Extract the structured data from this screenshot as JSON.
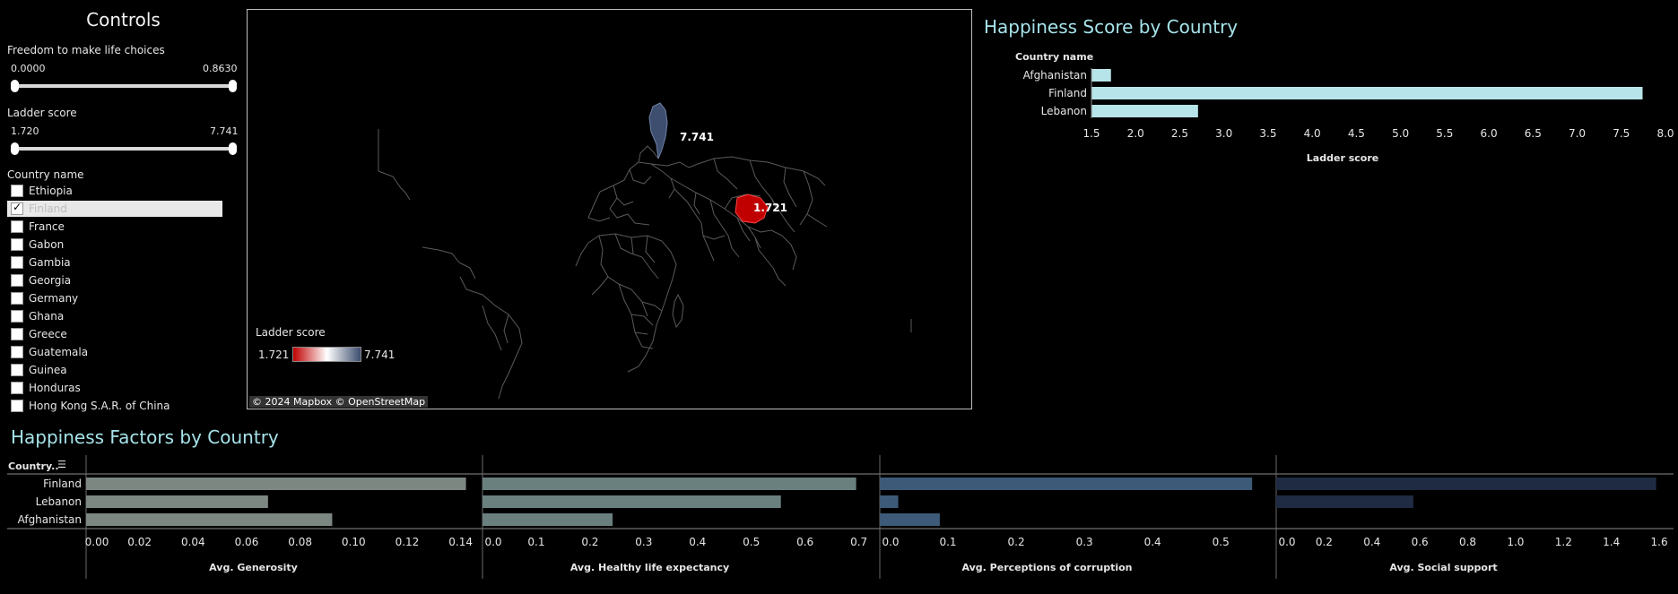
{
  "controls": {
    "title": "Controls",
    "freedom": {
      "label": "Freedom to make life choices",
      "min": "0.0000",
      "max": "0.8630"
    },
    "ladder": {
      "label": "Ladder score",
      "min": "1.720",
      "max": "7.741"
    },
    "country_filter": {
      "label": "Country name",
      "items": [
        {
          "name": "Ethiopia",
          "checked": false
        },
        {
          "name": "Finland",
          "checked": true
        },
        {
          "name": "France",
          "checked": false
        },
        {
          "name": "Gabon",
          "checked": false
        },
        {
          "name": "Gambia",
          "checked": false
        },
        {
          "name": "Georgia",
          "checked": false
        },
        {
          "name": "Germany",
          "checked": false
        },
        {
          "name": "Ghana",
          "checked": false
        },
        {
          "name": "Greece",
          "checked": false
        },
        {
          "name": "Guatemala",
          "checked": false
        },
        {
          "name": "Guinea",
          "checked": false
        },
        {
          "name": "Honduras",
          "checked": false
        },
        {
          "name": "Hong Kong S.A.R. of China",
          "checked": false
        }
      ]
    }
  },
  "map": {
    "legend_title": "Ladder score",
    "legend_min": "1.721",
    "legend_max": "7.741",
    "attribution": "© 2024 Mapbox © OpenStreetMap",
    "labels": [
      {
        "id": "finland",
        "text": "7.741"
      },
      {
        "id": "afghanistan",
        "text": "1.721"
      }
    ],
    "colors": {
      "high": "#3d4e6e",
      "low": "#c00000",
      "borders": "#5a5a5a"
    }
  },
  "score_chart": {
    "title": "Happiness Score by Country",
    "category_header": "Country name",
    "axis_title": "Ladder score",
    "bar_color": "#b7e4e9"
  },
  "factors_chart": {
    "title": "Happiness Factors by Country",
    "category_header": "Country..",
    "panels": [
      {
        "axis_title": "Avg. Generosity",
        "color": "#7d8781",
        "ticks": [
          "0.00",
          "0.02",
          "0.04",
          "0.06",
          "0.08",
          "0.10",
          "0.12",
          "0.14"
        ]
      },
      {
        "axis_title": "Avg. Healthy life expectancy",
        "color": "#6a807f",
        "ticks": [
          "0.0",
          "0.1",
          "0.2",
          "0.3",
          "0.4",
          "0.5",
          "0.6",
          "0.7"
        ]
      },
      {
        "axis_title": "Avg. Perceptions of corruption",
        "color": "#3d5a78",
        "ticks": [
          "0.0",
          "0.1",
          "0.2",
          "0.3",
          "0.4",
          "0.5"
        ]
      },
      {
        "axis_title": "Avg. Social support",
        "color": "#1f2b42",
        "ticks": [
          "0.0",
          "0.2",
          "0.4",
          "0.6",
          "0.8",
          "1.0",
          "1.2",
          "1.4",
          "1.6"
        ]
      }
    ]
  },
  "chart_data": [
    {
      "type": "bar",
      "orientation": "horizontal",
      "title": "Happiness Score by Country",
      "xlabel": "Ladder score",
      "ylabel": "Country name",
      "categories": [
        "Afghanistan",
        "Finland",
        "Lebanon"
      ],
      "values": [
        1.721,
        7.741,
        2.707
      ],
      "xlim": [
        1.5,
        8.0
      ],
      "ticks": [
        "1.5",
        "2.0",
        "2.5",
        "3.0",
        "3.5",
        "4.0",
        "4.5",
        "5.0",
        "5.5",
        "6.0",
        "6.5",
        "7.0",
        "7.5",
        "8.0"
      ]
    },
    {
      "type": "bar",
      "orientation": "horizontal",
      "title": "Happiness Factors by Country",
      "categories": [
        "Finland",
        "Lebanon",
        "Afghanistan"
      ],
      "series": [
        {
          "name": "Avg. Generosity",
          "values": [
            0.142,
            0.068,
            0.092
          ],
          "xlim": [
            0,
            0.1465
          ]
        },
        {
          "name": "Avg. Healthy life expectancy",
          "values": [
            0.695,
            0.555,
            0.242
          ],
          "xlim": [
            0,
            0.729
          ]
        },
        {
          "name": "Avg. Perceptions of corruption",
          "values": [
            0.546,
            0.027,
            0.088
          ],
          "xlim": [
            0,
            0.5747
          ]
        },
        {
          "name": "Avg. Social support",
          "values": [
            1.587,
            0.573,
            0.0
          ],
          "xlim": [
            0,
            1.6372
          ]
        }
      ]
    }
  ]
}
